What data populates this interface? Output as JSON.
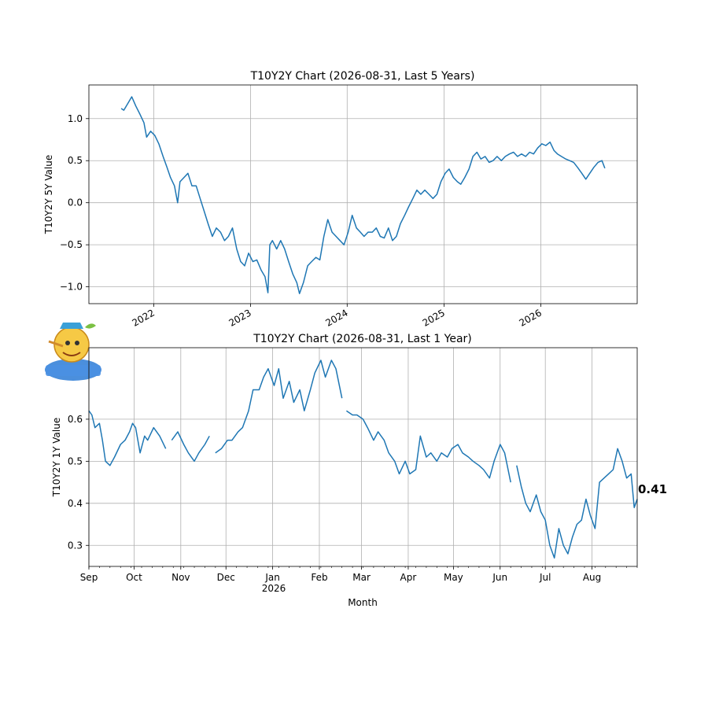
{
  "chart_data": [
    {
      "type": "line",
      "title": "T10Y2Y Chart (2026-08-31, Last 5 Years)",
      "ylabel": "T10Y2Y 5Y Value",
      "xlim": [
        "2021-05-01",
        "2026-12-31"
      ],
      "ylim": [
        -1.2,
        1.4
      ],
      "grid": true,
      "x_ticks": [
        "2022-01-01",
        "2023-01-01",
        "2024-01-01",
        "2025-01-01",
        "2026-01-01"
      ],
      "x_tick_labels": [
        "2022",
        "2023",
        "2024",
        "2025",
        "2026"
      ],
      "y_ticks": [
        -1.0,
        -0.5,
        0.0,
        0.5,
        1.0
      ],
      "y_tick_labels": [
        "−1.0",
        "−0.5",
        "0.0",
        "0.5",
        "1.0"
      ],
      "series": [
        {
          "color": "#1f77b4",
          "points": [
            [
              "2021-08-31",
              1.12
            ],
            [
              "2021-09-10",
              1.1
            ],
            [
              "2021-09-25",
              1.18
            ],
            [
              "2021-10-10",
              1.26
            ],
            [
              "2021-10-25",
              1.15
            ],
            [
              "2021-11-10",
              1.05
            ],
            [
              "2021-11-25",
              0.95
            ],
            [
              "2021-12-05",
              0.78
            ],
            [
              "2021-12-20",
              0.85
            ],
            [
              "2022-01-05",
              0.8
            ],
            [
              "2022-01-20",
              0.7
            ],
            [
              "2022-02-05",
              0.55
            ],
            [
              "2022-02-20",
              0.42
            ],
            [
              "2022-03-05",
              0.3
            ],
            [
              "2022-03-20",
              0.2
            ],
            [
              "2022-04-01",
              0.0
            ],
            [
              "2022-04-10",
              0.25
            ],
            [
              "2022-04-25",
              0.3
            ],
            [
              "2022-05-10",
              0.35
            ],
            [
              "2022-05-25",
              0.2
            ],
            [
              "2022-06-10",
              0.2
            ],
            [
              "2022-06-25",
              0.05
            ],
            [
              "2022-07-10",
              -0.1
            ],
            [
              "2022-07-25",
              -0.25
            ],
            [
              "2022-08-10",
              -0.4
            ],
            [
              "2022-08-25",
              -0.3
            ],
            [
              "2022-09-10",
              -0.35
            ],
            [
              "2022-09-25",
              -0.45
            ],
            [
              "2022-10-10",
              -0.4
            ],
            [
              "2022-10-25",
              -0.3
            ],
            [
              "2022-11-10",
              -0.55
            ],
            [
              "2022-11-25",
              -0.7
            ],
            [
              "2022-12-10",
              -0.75
            ],
            [
              "2022-12-25",
              -0.6
            ],
            [
              "2023-01-10",
              -0.7
            ],
            [
              "2023-01-25",
              -0.68
            ],
            [
              "2023-02-10",
              -0.8
            ],
            [
              "2023-02-25",
              -0.88
            ],
            [
              "2023-03-08",
              -1.07
            ],
            [
              "2023-03-15",
              -0.5
            ],
            [
              "2023-03-25",
              -0.45
            ],
            [
              "2023-04-10",
              -0.55
            ],
            [
              "2023-04-25",
              -0.45
            ],
            [
              "2023-05-10",
              -0.55
            ],
            [
              "2023-05-25",
              -0.7
            ],
            [
              "2023-06-10",
              -0.85
            ],
            [
              "2023-06-25",
              -0.95
            ],
            [
              "2023-07-05",
              -1.08
            ],
            [
              "2023-07-20",
              -0.95
            ],
            [
              "2023-08-05",
              -0.75
            ],
            [
              "2023-08-20",
              -0.7
            ],
            [
              "2023-09-05",
              -0.65
            ],
            [
              "2023-09-20",
              -0.68
            ],
            [
              "2023-10-05",
              -0.4
            ],
            [
              "2023-10-20",
              -0.2
            ],
            [
              "2023-11-05",
              -0.35
            ],
            [
              "2023-11-20",
              -0.4
            ],
            [
              "2023-12-05",
              -0.45
            ],
            [
              "2023-12-20",
              -0.5
            ],
            [
              "2024-01-05",
              -0.35
            ],
            [
              "2024-01-20",
              -0.15
            ],
            [
              "2024-02-05",
              -0.3
            ],
            [
              "2024-02-20",
              -0.35
            ],
            [
              "2024-03-05",
              -0.4
            ],
            [
              "2024-03-20",
              -0.35
            ],
            [
              "2024-04-05",
              -0.35
            ],
            [
              "2024-04-20",
              -0.3
            ],
            [
              "2024-05-05",
              -0.4
            ],
            [
              "2024-05-20",
              -0.42
            ],
            [
              "2024-06-05",
              -0.3
            ],
            [
              "2024-06-20",
              -0.45
            ],
            [
              "2024-07-05",
              -0.4
            ],
            [
              "2024-07-20",
              -0.25
            ],
            [
              "2024-08-05",
              -0.15
            ],
            [
              "2024-08-20",
              -0.05
            ],
            [
              "2024-09-05",
              0.05
            ],
            [
              "2024-09-20",
              0.15
            ],
            [
              "2024-10-05",
              0.1
            ],
            [
              "2024-10-20",
              0.15
            ],
            [
              "2024-11-05",
              0.1
            ],
            [
              "2024-11-20",
              0.05
            ],
            [
              "2024-12-05",
              0.1
            ],
            [
              "2024-12-20",
              0.25
            ],
            [
              "2025-01-05",
              0.35
            ],
            [
              "2025-01-20",
              0.4
            ],
            [
              "2025-02-05",
              0.3
            ],
            [
              "2025-02-20",
              0.25
            ],
            [
              "2025-03-05",
              0.22
            ],
            [
              "2025-03-20",
              0.3
            ],
            [
              "2025-04-05",
              0.4
            ],
            [
              "2025-04-20",
              0.55
            ],
            [
              "2025-05-05",
              0.6
            ],
            [
              "2025-05-20",
              0.52
            ],
            [
              "2025-06-05",
              0.55
            ],
            [
              "2025-06-20",
              0.48
            ],
            [
              "2025-07-05",
              0.5
            ],
            [
              "2025-07-20",
              0.55
            ],
            [
              "2025-08-05",
              0.5
            ],
            [
              "2025-08-20",
              0.55
            ],
            [
              "2025-09-05",
              0.58
            ],
            [
              "2025-09-20",
              0.6
            ],
            [
              "2025-10-05",
              0.55
            ],
            [
              "2025-10-20",
              0.58
            ],
            [
              "2025-11-05",
              0.55
            ],
            [
              "2025-11-20",
              0.6
            ],
            [
              "2025-12-05",
              0.58
            ],
            [
              "2025-12-20",
              0.65
            ],
            [
              "2026-01-05",
              0.7
            ],
            [
              "2026-01-20",
              0.68
            ],
            [
              "2026-02-05",
              0.72
            ],
            [
              "2026-02-20",
              0.62
            ],
            [
              "2026-03-05",
              0.58
            ],
            [
              "2026-03-20",
              0.55
            ],
            [
              "2026-04-05",
              0.52
            ],
            [
              "2026-04-20",
              0.5
            ],
            [
              "2026-05-05",
              0.48
            ],
            [
              "2026-05-20",
              0.42
            ],
            [
              "2026-06-05",
              0.35
            ],
            [
              "2026-06-20",
              0.28
            ],
            [
              "2026-07-05",
              0.35
            ],
            [
              "2026-07-20",
              0.42
            ],
            [
              "2026-08-05",
              0.48
            ],
            [
              "2026-08-20",
              0.5
            ],
            [
              "2026-08-31",
              0.41
            ]
          ]
        }
      ]
    },
    {
      "type": "line",
      "title": "T10Y2Y Chart (2026-08-31, Last 1 Year)",
      "ylabel": "T10Y2Y 1Y Value",
      "xlabel": "Month",
      "xlim": [
        "2025-09-01",
        "2026-08-31"
      ],
      "ylim": [
        0.25,
        0.77
      ],
      "grid": true,
      "x_ticks": [
        "2025-09-01",
        "2025-10-01",
        "2025-11-01",
        "2025-12-01",
        "2026-01-01",
        "2026-02-01",
        "2026-03-01",
        "2026-04-01",
        "2026-05-01",
        "2026-06-01",
        "2026-07-01",
        "2026-08-01"
      ],
      "x_tick_labels": [
        "Sep",
        "Oct",
        "Nov",
        "Dec",
        "Jan",
        "Feb",
        "Mar",
        "Apr",
        "May",
        "Jun",
        "Jul",
        "Aug"
      ],
      "year_label": "2026",
      "y_ticks": [
        0.3,
        0.4,
        0.5,
        0.6
      ],
      "y_tick_labels": [
        "0.3",
        "0.4",
        "0.5",
        "0.6"
      ],
      "last_value_label": "0.41",
      "series": [
        {
          "color": "#1f77b4",
          "points": [
            [
              "2025-09-01",
              0.62
            ],
            [
              "2025-09-03",
              0.61
            ],
            [
              "2025-09-05",
              0.58
            ],
            [
              "2025-09-08",
              0.59
            ],
            [
              "2025-09-10",
              0.55
            ],
            [
              "2025-09-12",
              0.5
            ],
            [
              "2025-09-15",
              0.49
            ],
            [
              "2025-09-18",
              0.51
            ],
            [
              "2025-09-22",
              0.54
            ],
            [
              "2025-09-25",
              0.55
            ],
            [
              "2025-09-28",
              0.57
            ],
            [
              "2025-09-30",
              0.59
            ],
            [
              "2025-10-02",
              0.58
            ],
            [
              "2025-10-05",
              0.52
            ],
            [
              "2025-10-08",
              0.56
            ],
            [
              "2025-10-10",
              0.55
            ],
            [
              "2025-10-14",
              0.58
            ],
            [
              "2025-10-18",
              0.56
            ],
            [
              "2025-10-22",
              0.53
            ],
            null,
            [
              "2025-10-26",
              0.55
            ],
            [
              "2025-10-30",
              0.57
            ],
            [
              "2025-11-03",
              0.54
            ],
            [
              "2025-11-06",
              0.52
            ],
            [
              "2025-11-10",
              0.5
            ],
            [
              "2025-11-13",
              0.52
            ],
            [
              "2025-11-17",
              0.54
            ],
            [
              "2025-11-20",
              0.56
            ],
            null,
            [
              "2025-11-24",
              0.52
            ],
            [
              "2025-11-28",
              0.53
            ],
            [
              "2025-12-02",
              0.55
            ],
            [
              "2025-12-05",
              0.55
            ],
            [
              "2025-12-09",
              0.57
            ],
            [
              "2025-12-12",
              0.58
            ],
            [
              "2025-12-16",
              0.62
            ],
            [
              "2025-12-19",
              0.67
            ],
            [
              "2025-12-23",
              0.67
            ],
            [
              "2025-12-26",
              0.7
            ],
            [
              "2025-12-29",
              0.72
            ],
            [
              "2026-01-02",
              0.68
            ],
            [
              "2026-01-05",
              0.72
            ],
            [
              "2026-01-08",
              0.65
            ],
            [
              "2026-01-12",
              0.69
            ],
            [
              "2026-01-15",
              0.64
            ],
            [
              "2026-01-19",
              0.67
            ],
            [
              "2026-01-22",
              0.62
            ],
            [
              "2026-01-26",
              0.67
            ],
            [
              "2026-01-29",
              0.71
            ],
            [
              "2026-02-02",
              0.74
            ],
            [
              "2026-02-05",
              0.7
            ],
            [
              "2026-02-09",
              0.74
            ],
            [
              "2026-02-12",
              0.72
            ],
            [
              "2026-02-16",
              0.65
            ],
            null,
            [
              "2026-02-19",
              0.62
            ],
            [
              "2026-02-23",
              0.61
            ],
            [
              "2026-02-26",
              0.61
            ],
            [
              "2026-03-02",
              0.6
            ],
            [
              "2026-03-05",
              0.58
            ],
            [
              "2026-03-09",
              0.55
            ],
            [
              "2026-03-12",
              0.57
            ],
            [
              "2026-03-16",
              0.55
            ],
            [
              "2026-03-19",
              0.52
            ],
            [
              "2026-03-23",
              0.5
            ],
            [
              "2026-03-26",
              0.47
            ],
            [
              "2026-03-30",
              0.5
            ],
            [
              "2026-04-02",
              0.47
            ],
            [
              "2026-04-06",
              0.48
            ],
            [
              "2026-04-09",
              0.56
            ],
            [
              "2026-04-13",
              0.51
            ],
            [
              "2026-04-16",
              0.52
            ],
            [
              "2026-04-20",
              0.5
            ],
            [
              "2026-04-23",
              0.52
            ],
            [
              "2026-04-27",
              0.51
            ],
            [
              "2026-04-30",
              0.53
            ],
            [
              "2026-05-04",
              0.54
            ],
            [
              "2026-05-07",
              0.52
            ],
            [
              "2026-05-11",
              0.51
            ],
            [
              "2026-05-14",
              0.5
            ],
            [
              "2026-05-18",
              0.49
            ],
            [
              "2026-05-21",
              0.48
            ],
            [
              "2026-05-25",
              0.46
            ],
            [
              "2026-05-28",
              0.5
            ],
            [
              "2026-06-01",
              0.54
            ],
            [
              "2026-06-04",
              0.52
            ],
            [
              "2026-06-08",
              0.45
            ],
            null,
            [
              "2026-06-12",
              0.49
            ],
            [
              "2026-06-15",
              0.44
            ],
            [
              "2026-06-18",
              0.4
            ],
            [
              "2026-06-21",
              0.38
            ],
            [
              "2026-06-25",
              0.42
            ],
            [
              "2026-06-28",
              0.38
            ],
            [
              "2026-07-01",
              0.36
            ],
            [
              "2026-07-04",
              0.3
            ],
            [
              "2026-07-07",
              0.27
            ],
            [
              "2026-07-10",
              0.34
            ],
            [
              "2026-07-13",
              0.3
            ],
            [
              "2026-07-16",
              0.28
            ],
            [
              "2026-07-19",
              0.32
            ],
            [
              "2026-07-22",
              0.35
            ],
            [
              "2026-07-25",
              0.36
            ],
            [
              "2026-07-28",
              0.41
            ],
            [
              "2026-07-31",
              0.37
            ],
            [
              "2026-08-03",
              0.34
            ],
            [
              "2026-08-06",
              0.45
            ],
            [
              "2026-08-09",
              0.46
            ],
            [
              "2026-08-12",
              0.47
            ],
            [
              "2026-08-15",
              0.48
            ],
            [
              "2026-08-18",
              0.53
            ],
            [
              "2026-08-21",
              0.5
            ],
            [
              "2026-08-24",
              0.46
            ],
            [
              "2026-08-27",
              0.47
            ],
            [
              "2026-08-29",
              0.39
            ],
            [
              "2026-08-31",
              0.41
            ]
          ]
        }
      ]
    }
  ]
}
